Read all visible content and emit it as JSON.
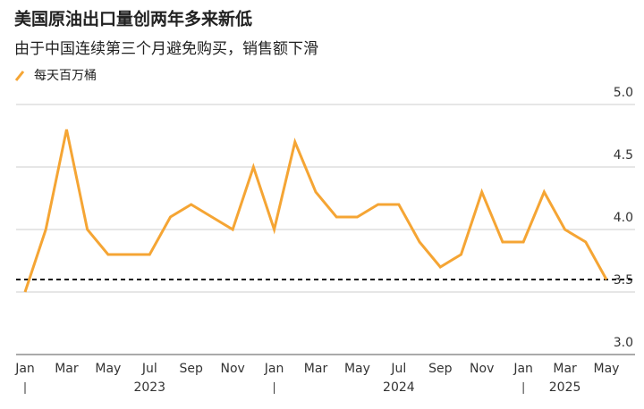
{
  "chart_data": {
    "type": "line",
    "title": "美国原油出口量创两年多来新低",
    "subtitle": "由于中国连续第三个月避免购买，销售额下滑",
    "categories": [
      "Jan",
      null,
      "Mar",
      null,
      "May",
      null,
      "Jul",
      null,
      "Sep",
      null,
      "Nov",
      null,
      "Jan",
      null,
      "Mar",
      null,
      "May",
      null,
      "Jul",
      null,
      "Sep",
      null,
      "Nov",
      null,
      "Jan",
      null,
      "Mar",
      null,
      "May"
    ],
    "year_labels": [
      "2023",
      "2024",
      "2025"
    ],
    "series": [
      {
        "name": "每天百万桶",
        "color": "#f5a534",
        "values": [
          3.5,
          4.0,
          4.8,
          4.0,
          3.8,
          3.8,
          3.8,
          4.1,
          4.2,
          4.1,
          4.0,
          4.5,
          4.0,
          4.7,
          4.3,
          4.1,
          4.1,
          4.2,
          4.2,
          3.9,
          3.7,
          3.8,
          4.3,
          3.9,
          3.9,
          4.3,
          4.0,
          3.9,
          3.6
        ]
      }
    ],
    "reference_line": 3.6,
    "ylim": [
      3,
      5
    ],
    "yticks": [
      {
        "value": 3,
        "label": "3.0"
      },
      {
        "value": 3.5,
        "label": "3.5"
      },
      {
        "value": 4,
        "label": "4.0"
      },
      {
        "value": 4.5,
        "label": "4.5"
      },
      {
        "value": 5,
        "label": "5.0"
      }
    ],
    "grid": true
  }
}
